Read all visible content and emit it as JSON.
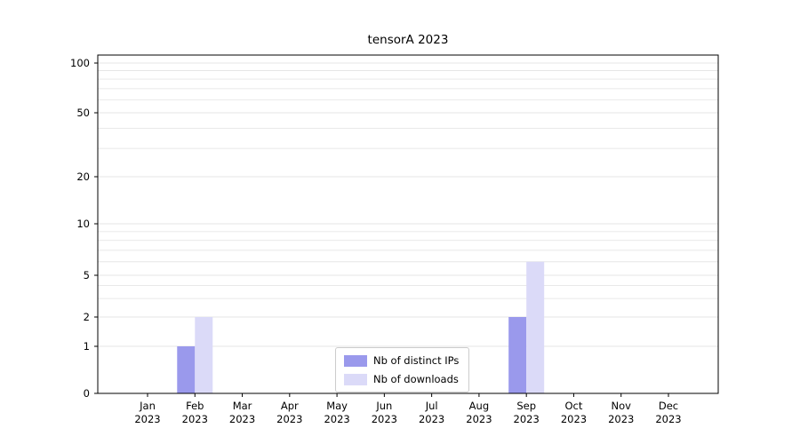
{
  "chart_data": {
    "type": "bar",
    "title": "tensorA 2023",
    "categories": [
      "Jan",
      "Feb",
      "Mar",
      "Apr",
      "May",
      "Jun",
      "Jul",
      "Aug",
      "Sep",
      "Oct",
      "Nov",
      "Dec"
    ],
    "year": "2023",
    "series": [
      {
        "name": "Nb of distinct IPs",
        "color": "#9a99ec",
        "values": [
          0,
          1,
          0,
          0,
          0,
          0,
          0,
          0,
          2,
          0,
          0,
          0
        ]
      },
      {
        "name": "Nb of downloads",
        "color": "#dbdaf8",
        "values": [
          0,
          2,
          0,
          0,
          0,
          0,
          0,
          0,
          6,
          0,
          0,
          0
        ]
      }
    ],
    "yticks": [
      0,
      1,
      2,
      5,
      10,
      20,
      50,
      100
    ],
    "ylim": [
      0,
      100
    ],
    "scale": "symlog",
    "grid": "minor-horizontal",
    "grid_color": "#e6e6e6",
    "legend_position": "bottom-center"
  }
}
